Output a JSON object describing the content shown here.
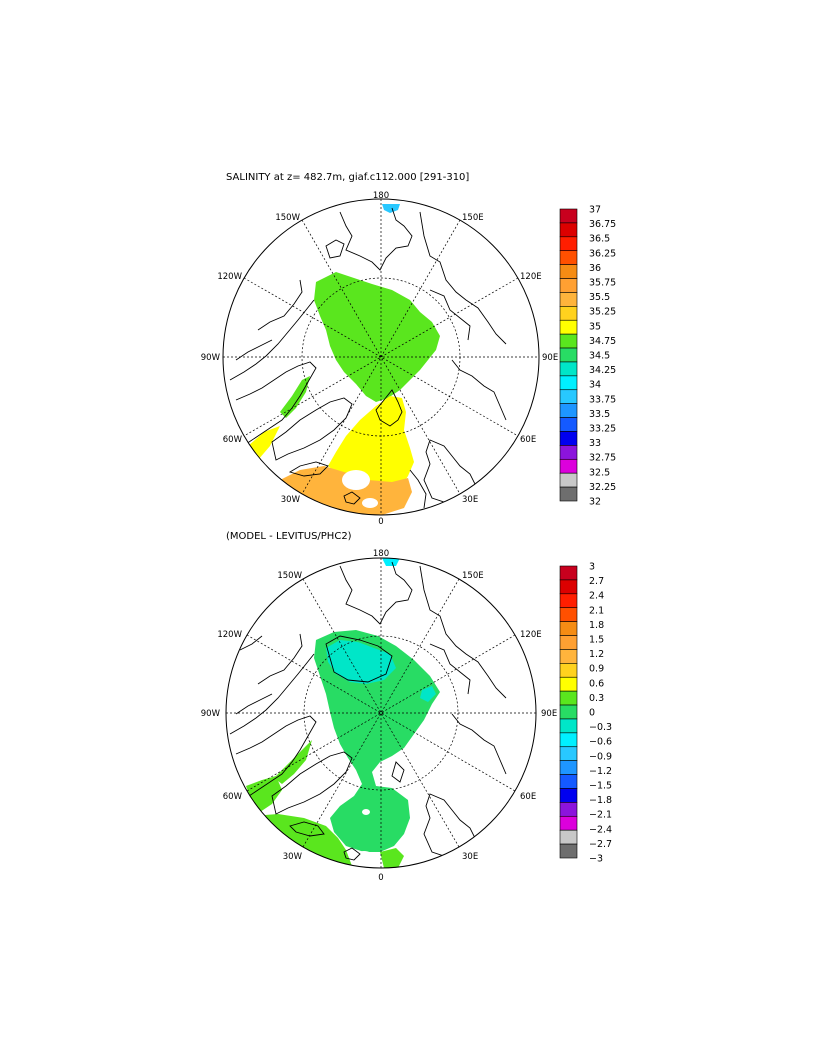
{
  "panels": [
    {
      "id": "top",
      "title": "SALINITY at z= 482.7m, giaf.c112.000 [291-310]",
      "lon_labels": [
        "180",
        "150E",
        "120E",
        "90E",
        "60E",
        "30E",
        "0",
        "30W",
        "60W",
        "90W",
        "120W",
        "150W"
      ],
      "colorbar": {
        "labels": [
          "37",
          "36.75",
          "36.5",
          "36.25",
          "36",
          "35.75",
          "35.5",
          "35.25",
          "35",
          "34.75",
          "34.5",
          "34.25",
          "34",
          "33.75",
          "33.5",
          "33.25",
          "33",
          "32.75",
          "32.5",
          "32.25",
          "32"
        ],
        "colors": [
          "#c8001e",
          "#dc0000",
          "#ff1e00",
          "#ff5000",
          "#f58c14",
          "#ffa032",
          "#ffb43c",
          "#ffd21e",
          "#ffff00",
          "#5ae61e",
          "#28dc64",
          "#00e6c8",
          "#00f0ff",
          "#28c8ff",
          "#1e96ff",
          "#145aff",
          "#0000f0",
          "#8c14dc",
          "#dc00dc",
          "#c8c8c8",
          "#6e6e6e"
        ]
      }
    },
    {
      "id": "bottom",
      "title": "(MODEL - LEVITUS/PHC2)",
      "lon_labels": [
        "180",
        "150E",
        "120E",
        "90E",
        "60E",
        "30E",
        "0",
        "30W",
        "60W",
        "90W",
        "120W",
        "150W"
      ],
      "colorbar": {
        "labels": [
          "3",
          "2.7",
          "2.4",
          "2.1",
          "1.8",
          "1.5",
          "1.2",
          "0.9",
          "0.6",
          "0.3",
          "0",
          "−0.3",
          "−0.6",
          "−0.9",
          "−1.2",
          "−1.5",
          "−1.8",
          "−2.1",
          "−2.4",
          "−2.7",
          "−3"
        ],
        "colors": [
          "#c8001e",
          "#dc0000",
          "#ff1e00",
          "#ff5000",
          "#f58c14",
          "#ffa032",
          "#ffb43c",
          "#ffd21e",
          "#ffff00",
          "#5ae61e",
          "#28dc64",
          "#00e6c8",
          "#00f0ff",
          "#28c8ff",
          "#1e96ff",
          "#145aff",
          "#0000f0",
          "#8c14dc",
          "#dc00dc",
          "#c8c8c8",
          "#6e6e6e"
        ]
      }
    }
  ]
}
